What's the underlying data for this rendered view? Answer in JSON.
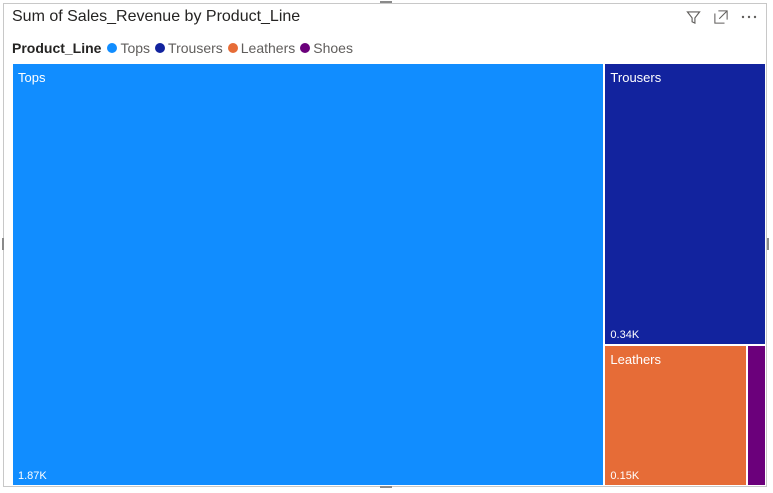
{
  "visual": {
    "icons": [
      "filter-icon",
      "focus-mode-icon",
      "more-options-icon"
    ]
  },
  "chart_data": {
    "type": "treemap",
    "title": "Sum of Sales_Revenue by Product_Line",
    "legend": {
      "title": "Product_Line",
      "position": "top-left"
    },
    "series": [
      {
        "name": "Tops",
        "value": 1870,
        "label": "1.87K",
        "color": "#118dff"
      },
      {
        "name": "Trousers",
        "value": 340,
        "label": "0.34K",
        "color": "#12239e"
      },
      {
        "name": "Leathers",
        "value": 150,
        "label": "0.15K",
        "color": "#e66c37"
      },
      {
        "name": "Shoes",
        "value": 20,
        "label": "",
        "color": "#6b007b"
      }
    ]
  }
}
